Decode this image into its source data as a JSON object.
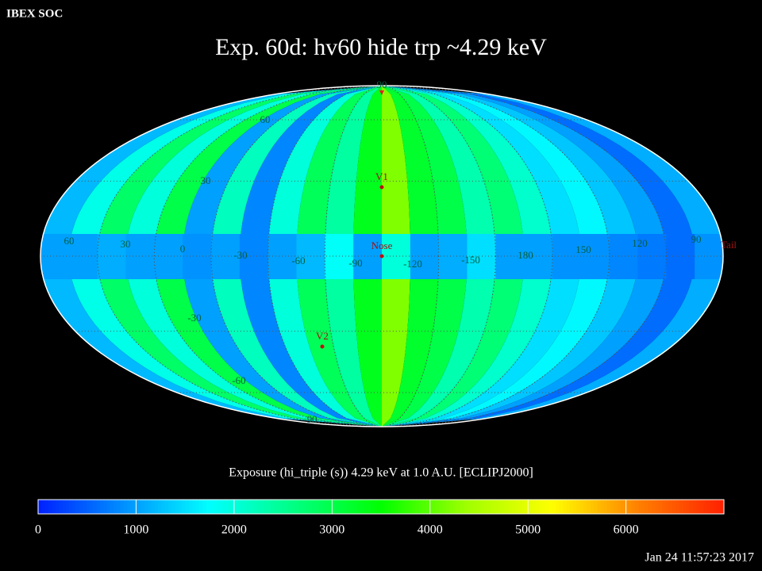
{
  "header": "IBEX SOC",
  "title": "Exp.   60d: hv60 hide trp ~4.29 keV",
  "map": {
    "strips": [
      1200,
      1900,
      2800,
      2000,
      3000,
      1000,
      2200,
      800,
      2000,
      2900,
      2400,
      3300,
      4200,
      3200,
      3000,
      2300,
      2700,
      2100,
      1500,
      1700,
      1300,
      1000,
      600,
      1100
    ],
    "equator_band": [
      1000,
      1000,
      1100,
      1000,
      1000,
      900,
      1000,
      800,
      1000,
      1200,
      1800,
      1000,
      2000,
      1000,
      1100,
      1500,
      1000,
      1000,
      900,
      900,
      800,
      700,
      600,
      900
    ]
  },
  "grid_labels": [
    "90",
    "60",
    "30",
    "60",
    "30",
    "0",
    "-30",
    "-60",
    "-90",
    "-120",
    "-150",
    "180",
    "150",
    "120",
    "90",
    "-30",
    "-60",
    "-90"
  ],
  "markers": [
    "V1",
    "Nose",
    "V2",
    "Tail"
  ],
  "caption": "Exposure (hi_triple (s))  4.29 keV at 1.0 A.U. [ECLIPJ2000]",
  "colorbar": {
    "clim": [
      0,
      7000
    ],
    "ticks": [
      0,
      1000,
      2000,
      3000,
      4000,
      5000,
      6000
    ],
    "colors": [
      "#0020ff",
      "#0090ff",
      "#00ffff",
      "#00ff80",
      "#00ff00",
      "#a0ff00",
      "#ffff00",
      "#ff8000",
      "#ff2000"
    ]
  },
  "timestamp": "Jan 24 11:57:23 2017"
}
